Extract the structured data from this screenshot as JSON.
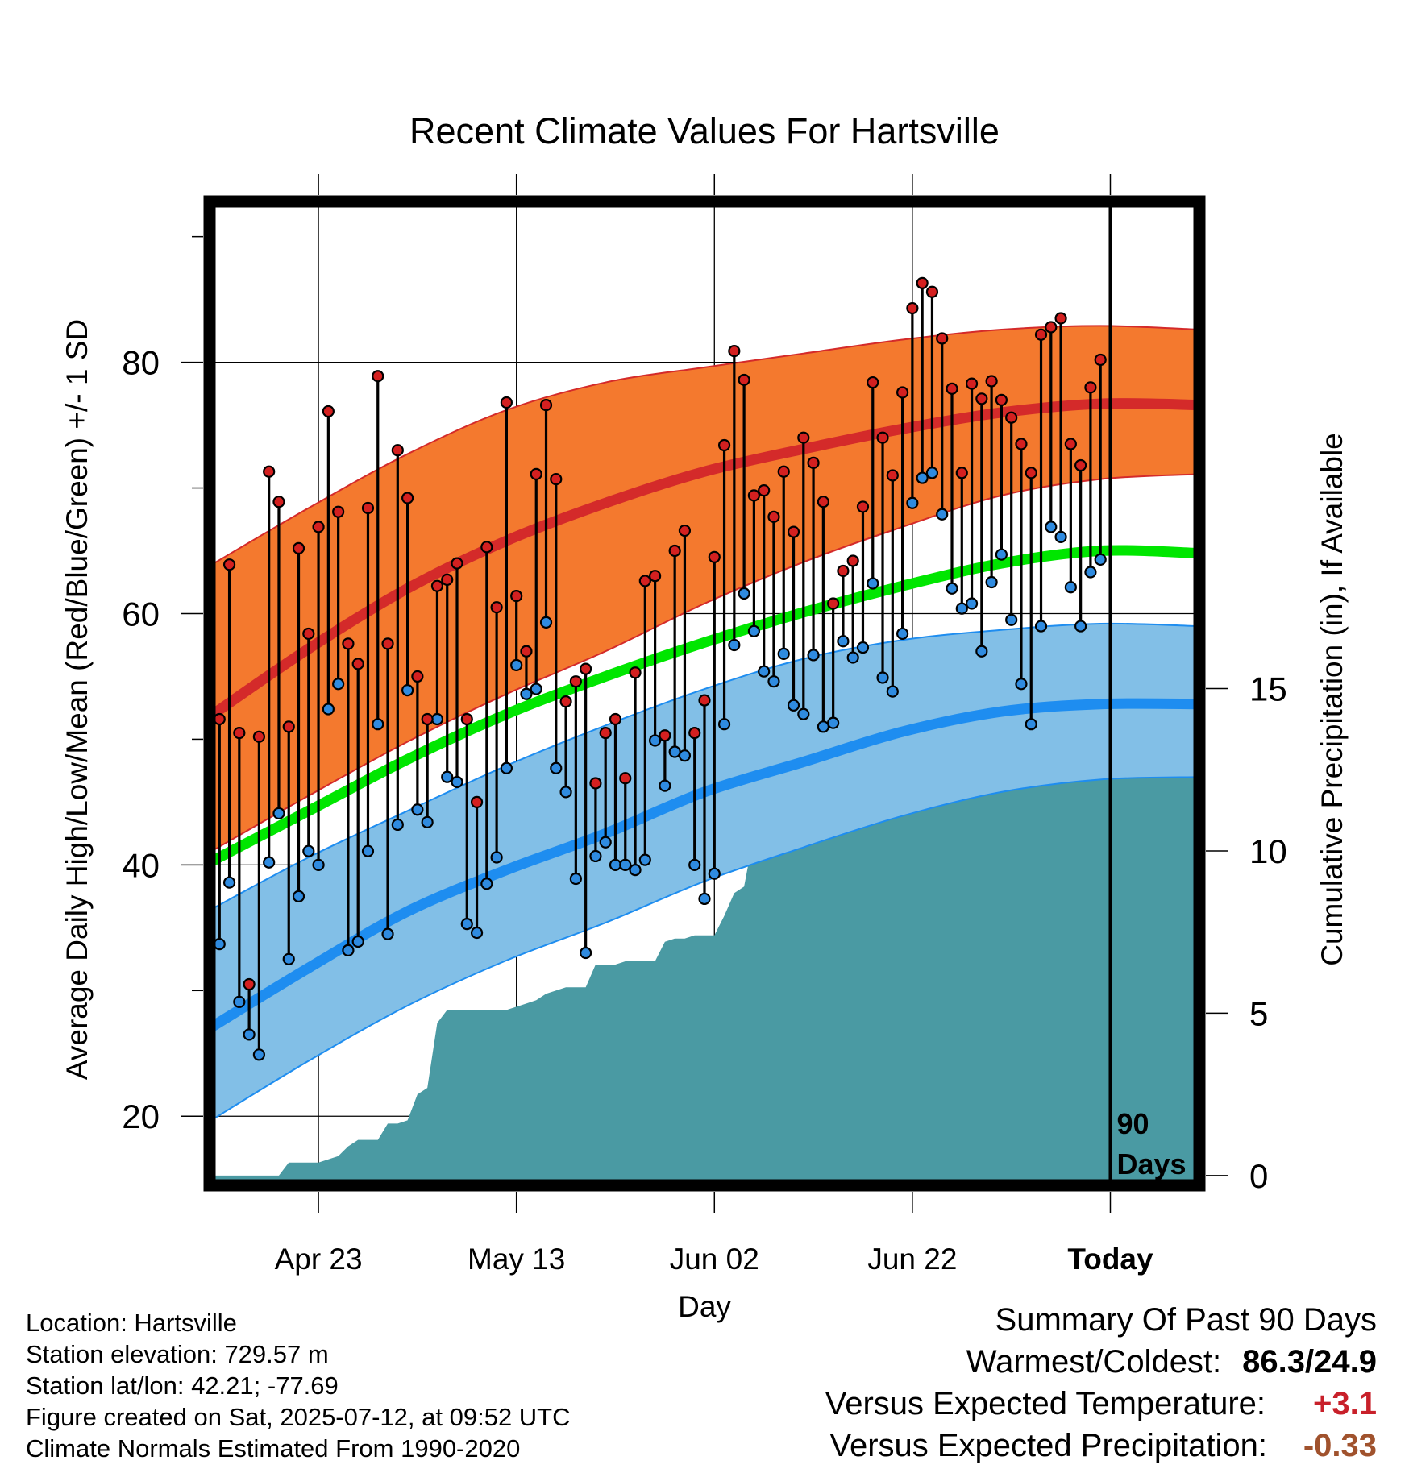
{
  "chart_data": {
    "type": "line",
    "title": "Recent Climate Values For Hartsville",
    "xlabel": "Day",
    "ylabel": "Average Daily High/Low/Mean (Red/Blue/Green) +/- 1 SD",
    "y2label": "Cumulative Precipitation (in), If Available",
    "x_tick_labels": [
      "Apr 23",
      "May 13",
      "Jun 02",
      "Jun 22",
      "Today"
    ],
    "x_tick_days": [
      11,
      31,
      51,
      71,
      91
    ],
    "xlim": [
      0,
      100
    ],
    "ylim": [
      14.5,
      92.8
    ],
    "y_ticks": [
      20,
      40,
      60,
      80
    ],
    "y2lim": [
      -0.3,
      30
    ],
    "y2_ticks": [
      0,
      5,
      10,
      15
    ],
    "today_marker": {
      "day": 91,
      "label_line1": "90",
      "label_line2": "Days"
    },
    "normals": {
      "days": [
        0,
        10,
        20,
        30,
        40,
        50,
        60,
        70,
        80,
        90,
        100
      ],
      "high_mean": [
        51.8,
        57.2,
        62.0,
        65.8,
        68.8,
        71.3,
        73.1,
        74.7,
        76.0,
        76.7,
        76.6
      ],
      "high_sd_upper": [
        63.8,
        68.4,
        72.7,
        76.2,
        78.4,
        79.6,
        80.7,
        81.8,
        82.6,
        82.9,
        82.6
      ],
      "high_sd_lower": [
        41.0,
        45.5,
        49.8,
        53.6,
        57.0,
        60.8,
        64.1,
        66.9,
        69.4,
        70.7,
        71.1
      ],
      "mean": [
        40.2,
        44.3,
        48.4,
        52.0,
        55.0,
        57.7,
        60.1,
        62.2,
        64.0,
        65.0,
        64.8
      ],
      "low_mean": [
        27.0,
        31.8,
        36.3,
        39.6,
        42.5,
        45.8,
        48.2,
        50.6,
        52.2,
        52.8,
        52.8
      ],
      "low_sd_upper": [
        36.4,
        40.6,
        44.3,
        47.9,
        51.1,
        54.0,
        56.4,
        57.9,
        58.7,
        59.2,
        59.0
      ],
      "low_sd_lower": [
        19.6,
        24.4,
        28.8,
        32.4,
        35.4,
        38.7,
        41.4,
        43.9,
        45.8,
        46.8,
        47.0
      ]
    },
    "series": [
      {
        "name": "High",
        "values": [
          51.6,
          63.9,
          50.5,
          30.5,
          50.2,
          71.3,
          68.9,
          51.0,
          65.2,
          58.4,
          66.9,
          76.1,
          68.1,
          57.6,
          56.0,
          68.4,
          78.9,
          57.6,
          73.0,
          69.2,
          55.0,
          51.6,
          62.2,
          62.7,
          64.0,
          51.6,
          45.0,
          65.3,
          60.5,
          76.8,
          61.4,
          57.0,
          71.1,
          76.6,
          70.7,
          53.0,
          54.6,
          55.6,
          46.5,
          50.5,
          51.6,
          46.9,
          55.3,
          62.6,
          63.0,
          50.3,
          65.0,
          66.6,
          50.5,
          53.1,
          64.5,
          73.4,
          80.9,
          78.6,
          69.4,
          69.8,
          67.7,
          71.3,
          66.5,
          74.0,
          72.0,
          68.9,
          60.8,
          63.4,
          64.2,
          68.5,
          78.4,
          74.0,
          71.0,
          77.6,
          84.3,
          86.3,
          85.6,
          81.9,
          77.9,
          71.2,
          78.3,
          77.1,
          78.5,
          77.0,
          75.6,
          73.5,
          71.2,
          82.2,
          82.8,
          83.5,
          73.5,
          71.8,
          78.0,
          80.2
        ]
      },
      {
        "name": "Low",
        "values": [
          33.7,
          38.6,
          29.1,
          26.5,
          24.9,
          40.2,
          44.1,
          32.5,
          37.5,
          41.1,
          40.0,
          52.4,
          54.4,
          33.2,
          33.9,
          41.1,
          51.2,
          34.5,
          43.2,
          53.9,
          44.4,
          43.4,
          51.6,
          47.0,
          46.6,
          35.3,
          34.6,
          38.5,
          40.6,
          47.7,
          55.9,
          53.6,
          54.0,
          59.3,
          47.7,
          45.8,
          38.9,
          33.0,
          40.7,
          41.8,
          40.0,
          40.0,
          39.6,
          40.4,
          49.9,
          46.3,
          49.0,
          48.7,
          40.0,
          37.3,
          39.3,
          51.2,
          57.5,
          61.6,
          58.6,
          55.4,
          54.6,
          56.8,
          52.7,
          52.0,
          56.7,
          51.0,
          51.3,
          57.8,
          56.5,
          57.3,
          62.4,
          54.9,
          53.8,
          58.4,
          68.8,
          70.8,
          71.2,
          67.9,
          62.0,
          60.4,
          60.8,
          57.0,
          62.5,
          64.7,
          59.5,
          54.4,
          51.2,
          59.0,
          66.9,
          66.1,
          62.1,
          59.0,
          63.3,
          64.3
        ]
      }
    ],
    "precip": {
      "days": [
        0,
        7,
        8,
        11,
        12,
        13,
        14,
        15,
        16,
        17,
        18,
        19,
        20,
        21,
        22,
        23,
        24,
        25,
        26,
        27,
        28,
        29,
        30,
        31,
        32,
        33,
        34,
        35,
        36,
        37,
        38,
        39,
        40,
        41,
        42,
        43,
        44,
        45,
        46,
        47,
        48,
        49,
        50,
        51,
        52,
        53,
        54,
        55,
        56,
        57,
        58,
        59,
        60,
        61,
        62,
        63,
        64,
        65,
        66,
        67,
        68,
        69,
        70,
        71,
        72,
        73,
        74,
        75,
        76,
        77,
        78,
        79,
        80,
        81,
        82,
        83,
        84,
        85,
        86,
        87,
        88,
        89,
        90,
        91,
        92,
        93,
        94,
        95,
        96,
        97,
        98,
        99
      ],
      "values": [
        0.0,
        0.0,
        0.4,
        0.4,
        0.5,
        0.6,
        0.9,
        1.1,
        1.1,
        1.1,
        1.6,
        1.6,
        1.7,
        2.5,
        2.7,
        4.7,
        5.1,
        5.1,
        5.1,
        5.1,
        5.1,
        5.1,
        5.1,
        5.2,
        5.3,
        5.4,
        5.6,
        5.7,
        5.8,
        5.8,
        5.8,
        6.5,
        6.5,
        6.5,
        6.6,
        6.6,
        6.6,
        6.6,
        7.2,
        7.3,
        7.3,
        7.4,
        7.4,
        7.4,
        8.0,
        8.7,
        8.9,
        10.5,
        10.5,
        10.5,
        10.5,
        10.5,
        10.6,
        10.6,
        10.6,
        10.7,
        10.8,
        10.9,
        11.0,
        11.0,
        11.2,
        11.5,
        11.7,
        11.7,
        11.8,
        11.8,
        11.9,
        11.9,
        12.0,
        12.0,
        12.0,
        12.1,
        12.1,
        12.1,
        12.1,
        12.2,
        12.2,
        12.3,
        12.3,
        12.3,
        12.4,
        12.4,
        12.5,
        12.6,
        12.6,
        12.6,
        12.6,
        12.7,
        12.7,
        12.7,
        12.7,
        12.7
      ]
    },
    "colors": {
      "high_band": "#f4792e",
      "high_line": "#d42a2a",
      "mean_line": "#00e600",
      "low_band": "#82bfe7",
      "low_line": "#1e8df0",
      "precip": "#4a9aa3",
      "high_dot": "#d42020",
      "low_dot": "#2f8be0"
    }
  },
  "info": {
    "location": "Location: Hartsville",
    "elevation": "Station elevation: 729.57 m",
    "latlon": "Station lat/lon: 42.21; -77.69",
    "created": "Figure created on Sat, 2025-07-12, at 09:52 UTC",
    "normals": "Climate Normals Estimated From 1990-2020"
  },
  "summary": {
    "title": "Summary Of Past 90 Days",
    "warmest_label": "Warmest/Coldest:",
    "warmest_value": "86.3/24.9",
    "temp_label": "Versus Expected Temperature:",
    "temp_value": "+3.1",
    "temp_color": "#c8202a",
    "precip_label": "Versus Expected Precipitation:",
    "precip_value": "-0.33",
    "precip_color": "#a0522d"
  }
}
